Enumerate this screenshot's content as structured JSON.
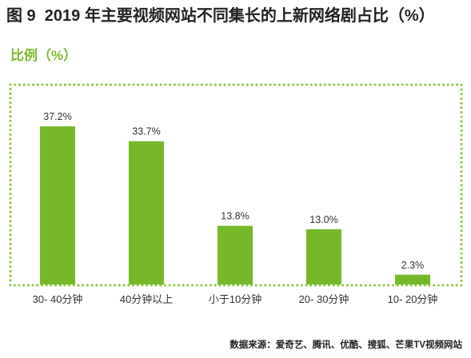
{
  "colors": {
    "bar": "#76b82a",
    "accent": "#7cb730",
    "border": "#8dc63f",
    "text": "#222222",
    "label": "#333333"
  },
  "source": "数据来源：爱奇艺、腾讯、优酷、搜狐、芒果TV视频网站",
  "chart_data": {
    "type": "bar",
    "title": "图 9  2019 年主要视频网站不同集长的上新网络剧占比（%）",
    "ylabel": "比例（%）",
    "xlabel": "",
    "categories": [
      "30- 40分钟",
      "40分钟以上",
      "小于10分钟",
      "20- 30分钟",
      "10- 20分钟"
    ],
    "values": [
      37.2,
      33.7,
      13.8,
      13.0,
      2.3
    ],
    "data_labels": [
      "37.2%",
      "33.7%",
      "13.8%",
      "13.0%",
      "2.3%"
    ],
    "ylim": [
      0,
      47
    ],
    "grid": false,
    "legend": "none"
  }
}
